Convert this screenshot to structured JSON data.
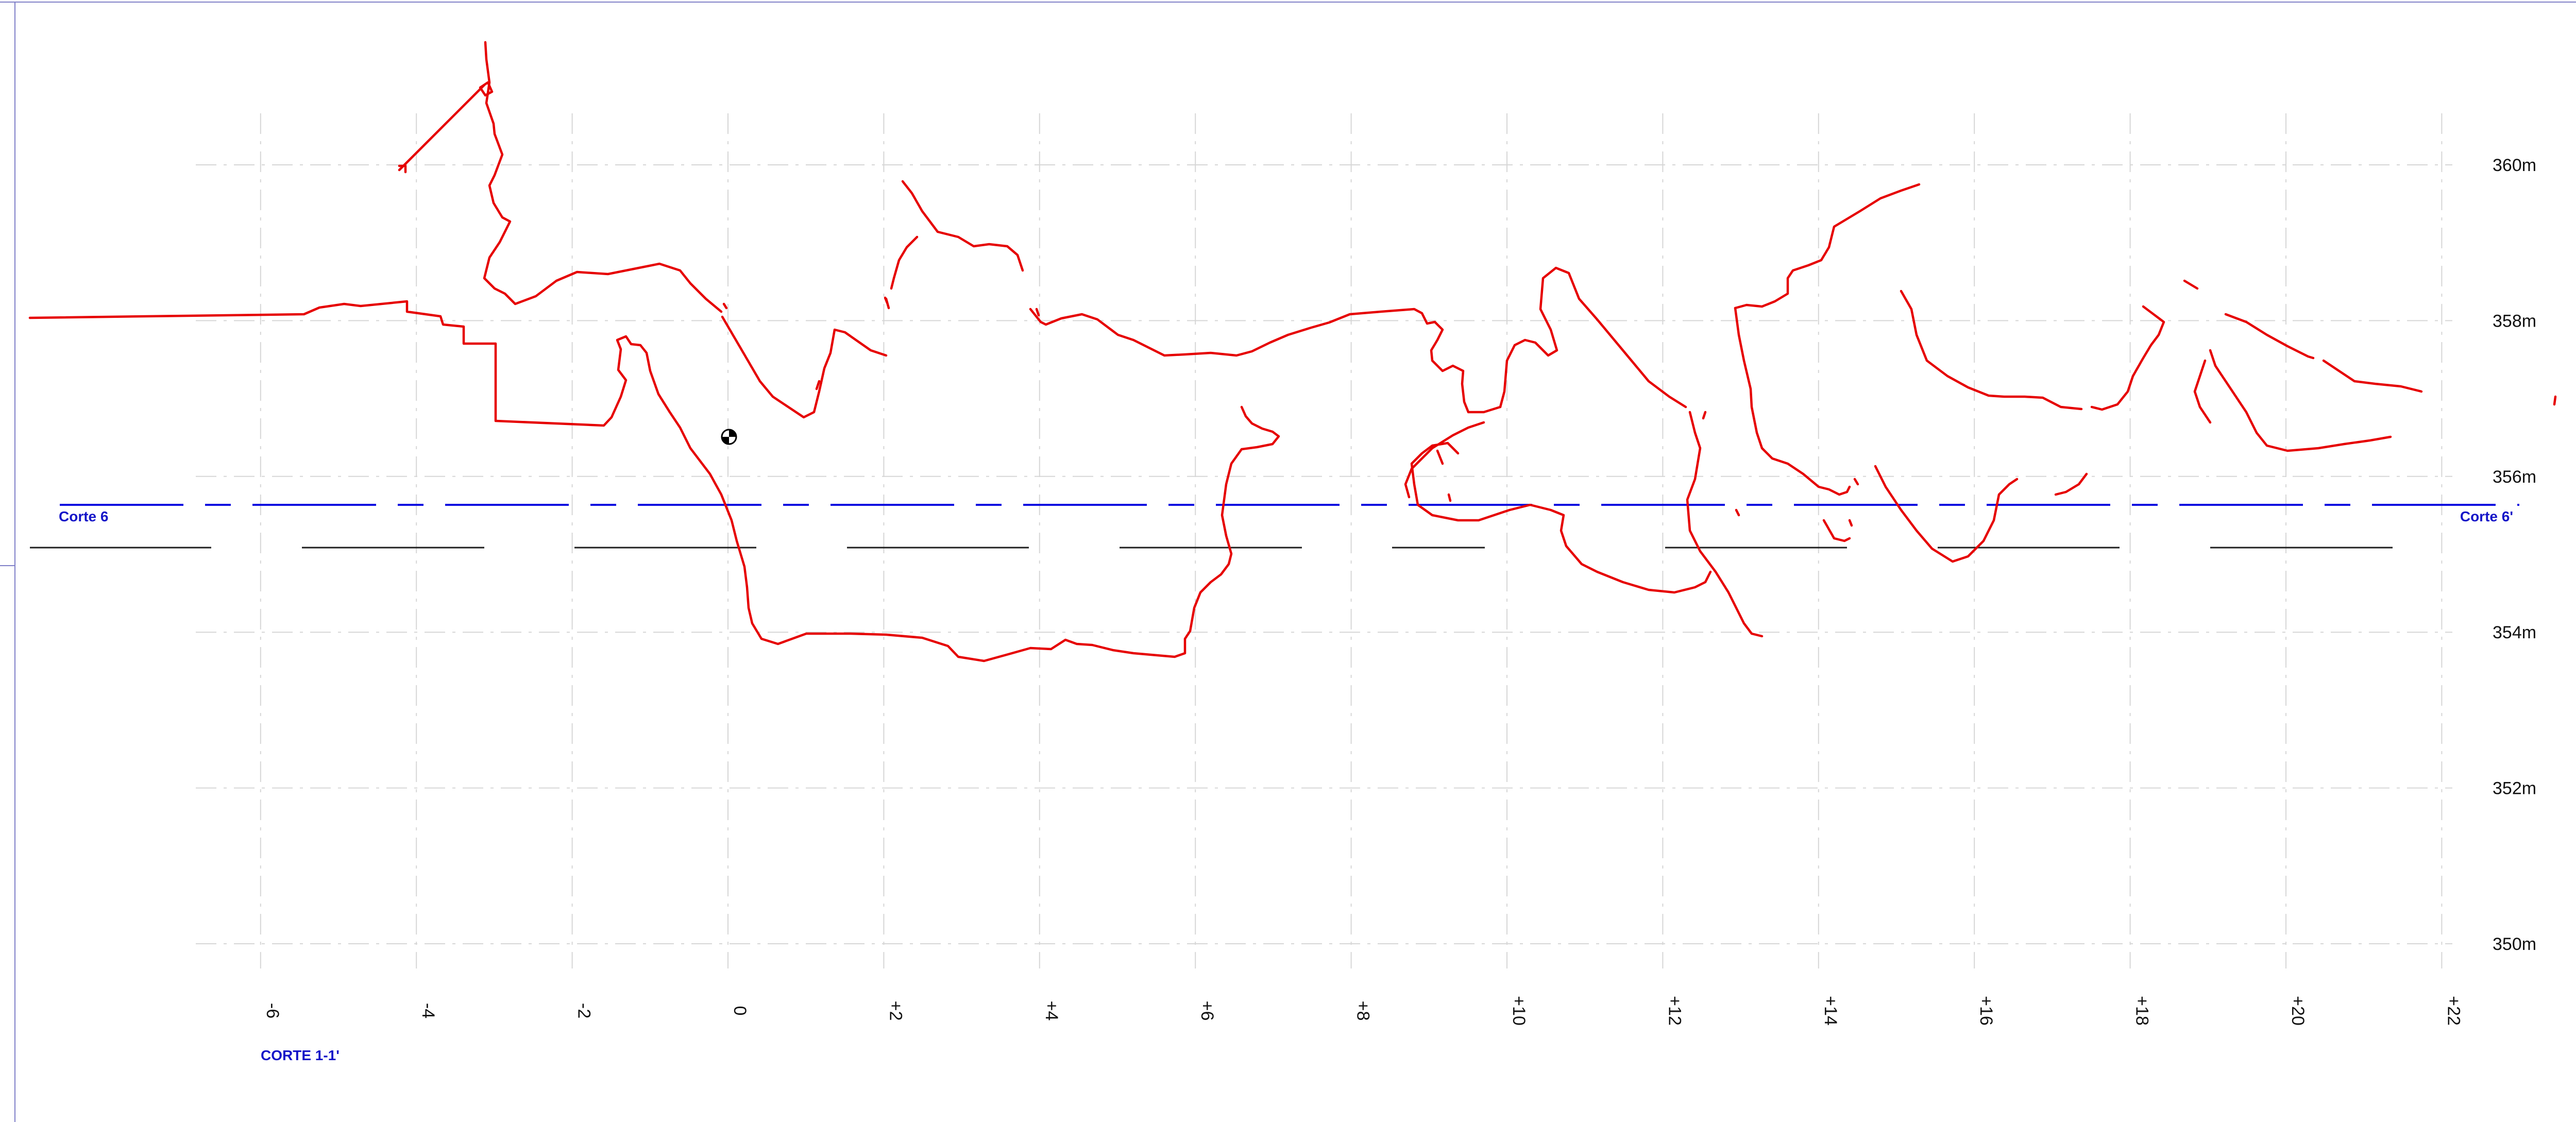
{
  "drawing": {
    "section_name": "CORTE  1-1'",
    "cut_line_start": "Corte 6",
    "cut_line_end": "Corte 6'",
    "colors": {
      "profile": "#e60000",
      "section_line": "#1010e0",
      "grid": "#d6d6d6",
      "reference_lines": "#202020"
    },
    "elevation_axis": {
      "unit": "m",
      "labels": [
        "360m",
        "358m",
        "356m",
        "354m",
        "352m",
        "350m"
      ],
      "values": [
        360,
        358,
        356,
        354,
        352,
        350
      ]
    },
    "offset_axis": {
      "labels": [
        "-6",
        "-4",
        "-2",
        "0",
        "+2",
        "+4",
        "+6",
        "+8",
        "+10",
        "+12",
        "+14",
        "+16",
        "+18",
        "+20",
        "+22"
      ],
      "values": [
        -6,
        -4,
        -2,
        0,
        2,
        4,
        6,
        8,
        10,
        12,
        14,
        16,
        18,
        20,
        22
      ]
    },
    "marker_icon": "survey-target-icon"
  }
}
